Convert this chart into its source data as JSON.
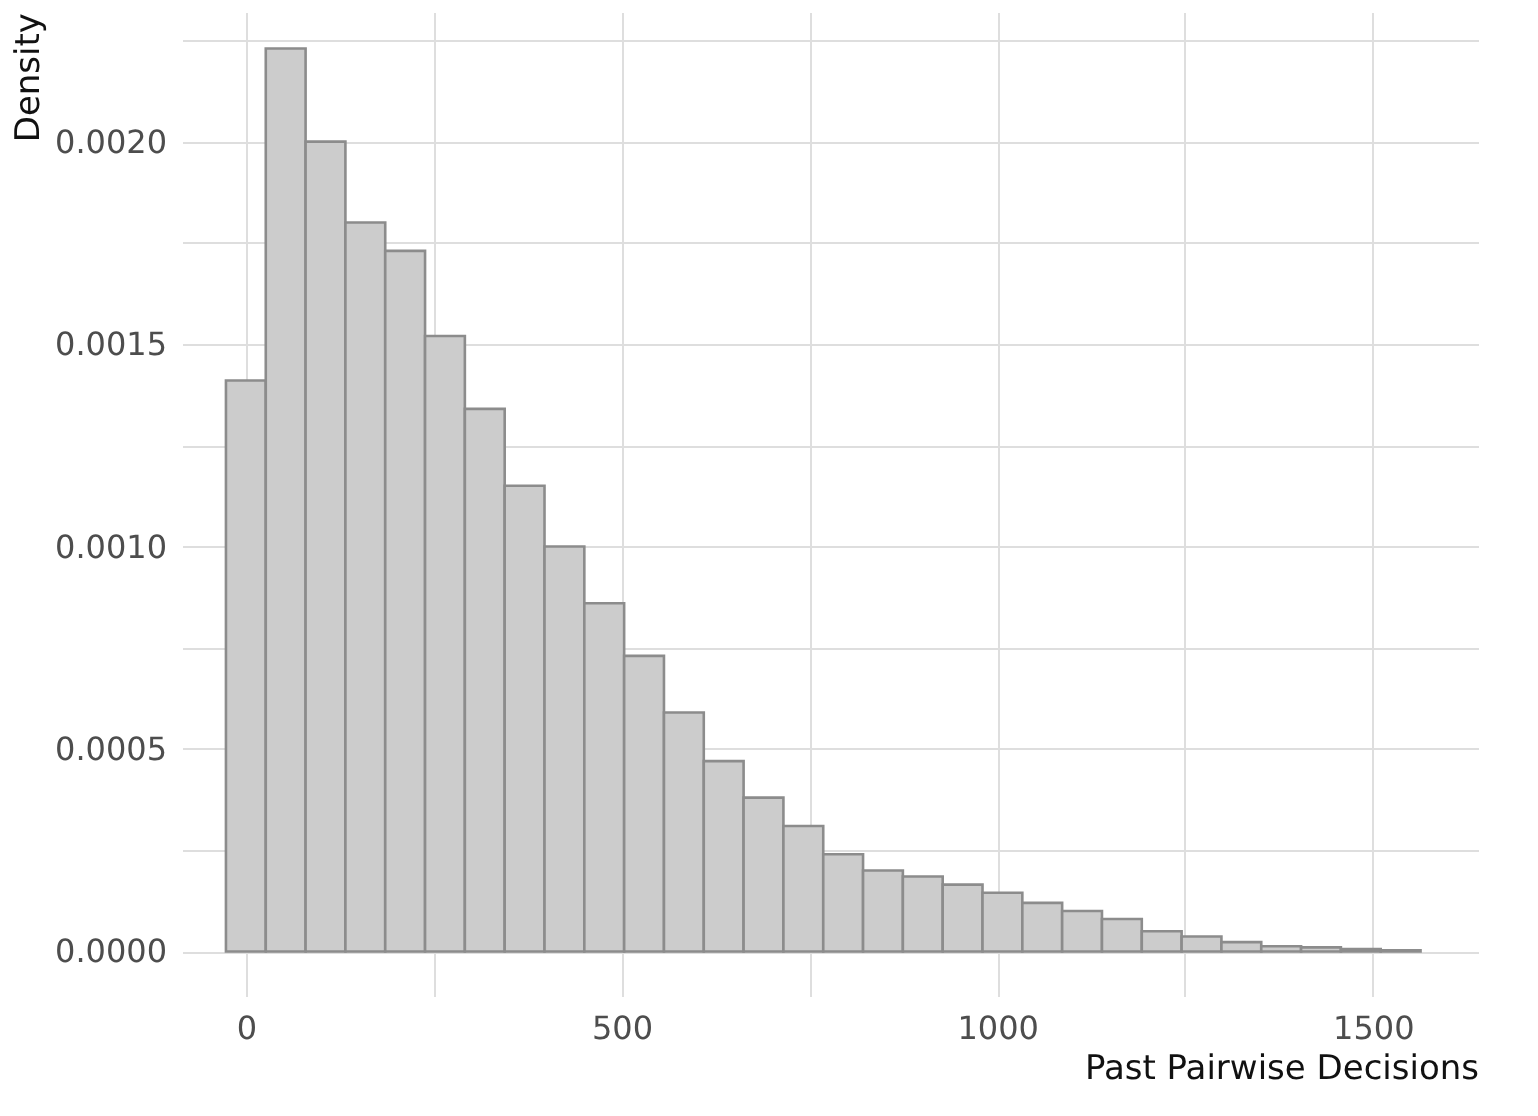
{
  "chart_data": {
    "type": "histogram",
    "xlabel": "Past Pairwise Decisions",
    "ylabel": "Density",
    "color": "#cccccc",
    "bins": [
      -26.5,
      26.5,
      79.5,
      132.5,
      185.5,
      238.5,
      291.5,
      344.5,
      397.5,
      450.5,
      503.5,
      556.5,
      609.5,
      662.5,
      715.5,
      768.5,
      821.5,
      874.5,
      927.5,
      980.5,
      1033.5,
      1086.5,
      1139.5,
      1192.5,
      1245.5,
      1298.5,
      1351.5,
      1404.5,
      1457.5,
      1510.5,
      1563.5
    ],
    "values": [
      0.00141,
      0.00223,
      0.002,
      0.0018,
      0.00173,
      0.00152,
      0.00134,
      0.00115,
      0.001,
      0.00086,
      0.00073,
      0.00059,
      0.00047,
      0.00038,
      0.00031,
      0.00024,
      0.0002,
      0.000185,
      0.000165,
      0.000145,
      0.00012,
      0.0001,
      8e-05,
      5e-05,
      3.7e-05,
      2.3e-05,
      1.3e-05,
      1e-05,
      6e-06,
      3e-06
    ],
    "xlim": [
      -85,
      1640
    ],
    "xticks": [
      0,
      {
        "value": 250,
        "label": null
      },
      500,
      {
        "value": 750,
        "label": null
      },
      1000,
      {
        "value": 1250,
        "label": null
      },
      1500
    ],
    "ylim": [
      -0.00011,
      0.00232
    ],
    "yticks": [
      {
        "value": 0,
        "label": "0.0000"
      },
      {
        "value": 0.00025,
        "label": null
      },
      {
        "value": 0.0005,
        "label": "0.0005"
      },
      {
        "value": 0.00075,
        "label": null
      },
      {
        "value": 0.001,
        "label": "0.0010"
      },
      {
        "value": 0.00125,
        "label": null
      },
      {
        "value": 0.0015,
        "label": "0.0015"
      },
      {
        "value": 0.00175,
        "label": null
      },
      {
        "value": 0.002,
        "label": "0.0020"
      },
      {
        "value": 0.00225,
        "label": null
      }
    ],
    "grid": true
  }
}
